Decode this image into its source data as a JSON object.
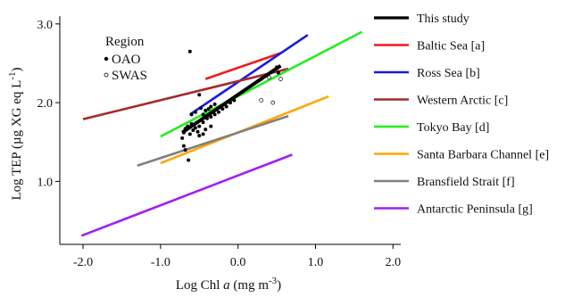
{
  "chart_data": {
    "type": "scatter",
    "xlabel_prefix": "Log Chl ",
    "xlabel_var": "a",
    "xlabel_unit_pre": " (mg m",
    "xlabel_unit_sup": "-3",
    "xlabel_unit_post": ")",
    "ylabel_pre": "Log TEP (µg XG eq L",
    "ylabel_sup": "-1",
    "ylabel_post": ")",
    "xlim": [
      -2.3,
      2.1
    ],
    "ylim": [
      0.2,
      3.1
    ],
    "x_ticks": [
      {
        "v": -2.0,
        "label": "-2.0"
      },
      {
        "v": -1.0,
        "label": "-1.0"
      },
      {
        "v": 0.0,
        "label": "0.0"
      },
      {
        "v": 1.0,
        "label": "1.0"
      },
      {
        "v": 2.0,
        "label": "2.0"
      }
    ],
    "y_ticks": [
      {
        "v": 1.0,
        "label": "1.0"
      },
      {
        "v": 2.0,
        "label": "2.0"
      },
      {
        "v": 3.0,
        "label": "3.0"
      }
    ],
    "grid": false,
    "legend_position": "right",
    "region_legend": {
      "title": "Region",
      "items": [
        {
          "marker": "filled-dot",
          "label": "OAO"
        },
        {
          "marker": "open-circle",
          "label": "SWAS"
        }
      ]
    },
    "series": [
      {
        "name": "This study",
        "color": "#000000",
        "line": [
          [
            -0.72,
            1.62
          ],
          [
            0.55,
            2.47
          ]
        ]
      },
      {
        "name": "Baltic Sea [a]",
        "color": "#ee1c1c",
        "line": [
          [
            -0.42,
            2.3
          ],
          [
            0.55,
            2.63
          ]
        ]
      },
      {
        "name": "Ross Sea [b]",
        "color": "#1a1ae0",
        "line": [
          [
            -0.62,
            1.85
          ],
          [
            0.9,
            2.86
          ]
        ]
      },
      {
        "name": "Western Arctic [c]",
        "color": "#a52a2a",
        "line": [
          [
            -2.0,
            1.79
          ],
          [
            0.65,
            2.43
          ]
        ]
      },
      {
        "name": "Tokyo Bay [d]",
        "color": "#22ee22",
        "line": [
          [
            -1.0,
            1.57
          ],
          [
            1.6,
            2.9
          ]
        ]
      },
      {
        "name": "Santa Barbara Channel [e]",
        "color": "#ffa500",
        "line": [
          [
            -1.0,
            1.23
          ],
          [
            1.17,
            2.08
          ]
        ]
      },
      {
        "name": "Bransfield Strait [f]",
        "color": "#808080",
        "line": [
          [
            -1.3,
            1.2
          ],
          [
            0.65,
            1.83
          ]
        ]
      },
      {
        "name": "Antarctic Peninsula [g]",
        "color": "#a020f0",
        "line": [
          [
            -2.02,
            0.31
          ],
          [
            0.7,
            1.34
          ]
        ]
      }
    ],
    "points_oao": [
      [
        -0.62,
        2.65
      ],
      [
        -0.5,
        2.1
      ],
      [
        -0.48,
        1.93
      ],
      [
        -0.42,
        1.9
      ],
      [
        -0.38,
        1.92
      ],
      [
        -0.35,
        1.95
      ],
      [
        -0.3,
        1.98
      ],
      [
        -0.55,
        1.88
      ],
      [
        -0.6,
        1.85
      ],
      [
        -0.45,
        1.85
      ],
      [
        -0.7,
        1.62
      ],
      [
        -0.68,
        1.67
      ],
      [
        -0.65,
        1.7
      ],
      [
        -0.6,
        1.73
      ],
      [
        -0.55,
        1.68
      ],
      [
        -0.58,
        1.65
      ],
      [
        -0.52,
        1.63
      ],
      [
        -0.62,
        1.6
      ],
      [
        -0.5,
        1.7
      ],
      [
        -0.45,
        1.75
      ],
      [
        -0.4,
        1.8
      ],
      [
        -0.35,
        1.82
      ],
      [
        -0.3,
        1.85
      ],
      [
        -0.25,
        1.88
      ],
      [
        -0.2,
        1.92
      ],
      [
        -0.15,
        1.95
      ],
      [
        -0.1,
        2.0
      ],
      [
        -0.05,
        2.03
      ],
      [
        -0.72,
        1.55
      ],
      [
        -0.7,
        1.45
      ],
      [
        -0.68,
        1.4
      ],
      [
        -0.64,
        1.27
      ],
      [
        -0.45,
        1.6
      ],
      [
        -0.5,
        1.58
      ],
      [
        -0.35,
        1.7
      ],
      [
        -0.42,
        1.66
      ],
      [
        0.3,
        2.3
      ],
      [
        0.45,
        2.4
      ],
      [
        0.5,
        2.45
      ],
      [
        0.52,
        2.38
      ]
    ],
    "points_swas": [
      [
        0.3,
        2.03
      ],
      [
        0.45,
        2.0
      ],
      [
        0.4,
        2.32
      ],
      [
        0.55,
        2.3
      ]
    ]
  }
}
